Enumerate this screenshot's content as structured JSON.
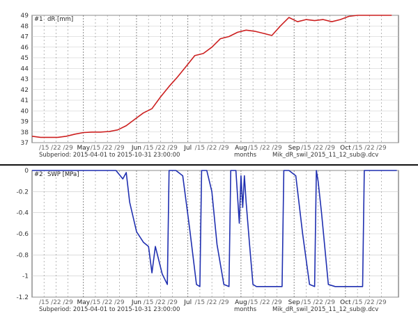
{
  "chart_data": [
    {
      "type": "line",
      "panel_id": "#1",
      "ylabel": "dR [mm]",
      "color": "#cc1f1f",
      "ylim": [
        37,
        49
      ],
      "yticks": [
        37,
        38,
        39,
        40,
        41,
        42,
        43,
        44,
        45,
        46,
        47,
        48,
        49
      ],
      "series": [
        {
          "values": [
            [
              "2015-04-01",
              37.6
            ],
            [
              "2015-04-06",
              37.5
            ],
            [
              "2015-04-11",
              37.5
            ],
            [
              "2015-04-16",
              37.5
            ],
            [
              "2015-04-21",
              37.6
            ],
            [
              "2015-04-26",
              37.8
            ],
            [
              "2015-05-01",
              37.95
            ],
            [
              "2015-05-06",
              38.0
            ],
            [
              "2015-05-11",
              38.0
            ],
            [
              "2015-05-16",
              38.05
            ],
            [
              "2015-05-21",
              38.2
            ],
            [
              "2015-05-26",
              38.6
            ],
            [
              "2015-05-31",
              39.2
            ],
            [
              "2015-06-05",
              39.8
            ],
            [
              "2015-06-10",
              40.2
            ],
            [
              "2015-06-15",
              41.3
            ],
            [
              "2015-06-20",
              42.3
            ],
            [
              "2015-06-25",
              43.2
            ],
            [
              "2015-06-30",
              44.2
            ],
            [
              "2015-07-05",
              45.2
            ],
            [
              "2015-07-10",
              45.4
            ],
            [
              "2015-07-15",
              46.0
            ],
            [
              "2015-07-20",
              46.8
            ],
            [
              "2015-07-25",
              47.0
            ],
            [
              "2015-07-30",
              47.4
            ],
            [
              "2015-08-04",
              47.6
            ],
            [
              "2015-08-09",
              47.5
            ],
            [
              "2015-08-14",
              47.3
            ],
            [
              "2015-08-19",
              47.1
            ],
            [
              "2015-08-24",
              48.0
            ],
            [
              "2015-08-29",
              48.8
            ],
            [
              "2015-09-03",
              48.4
            ],
            [
              "2015-09-08",
              48.6
            ],
            [
              "2015-09-13",
              48.5
            ],
            [
              "2015-09-18",
              48.6
            ],
            [
              "2015-09-23",
              48.4
            ],
            [
              "2015-09-28",
              48.6
            ],
            [
              "2015-10-03",
              48.9
            ],
            [
              "2015-10-08",
              49.0
            ],
            [
              "2015-10-13",
              49.0
            ],
            [
              "2015-10-18",
              49.0
            ],
            [
              "2015-10-23",
              49.0
            ],
            [
              "2015-10-28",
              49.0
            ]
          ]
        }
      ]
    },
    {
      "type": "line",
      "panel_id": "#2",
      "ylabel": "SWP [MPa]",
      "color": "#1f2fb0",
      "ylim": [
        -1.2,
        0
      ],
      "yticks": [
        0,
        -0.2,
        -0.4,
        -0.6,
        -0.8,
        -1,
        -1.2
      ],
      "series": [
        {
          "values": [
            [
              "2015-04-01",
              0
            ],
            [
              "2015-05-20",
              0
            ],
            [
              "2015-05-24",
              -0.08
            ],
            [
              "2015-05-26",
              -0.02
            ],
            [
              "2015-05-28",
              -0.3
            ],
            [
              "2015-06-01",
              -0.58
            ],
            [
              "2015-06-05",
              -0.68
            ],
            [
              "2015-06-08",
              -0.72
            ],
            [
              "2015-06-10",
              -0.97
            ],
            [
              "2015-06-12",
              -0.72
            ],
            [
              "2015-06-16",
              -0.98
            ],
            [
              "2015-06-19",
              -1.08
            ],
            [
              "2015-06-20",
              0
            ],
            [
              "2015-06-24",
              0
            ],
            [
              "2015-06-28",
              -0.05
            ],
            [
              "2015-07-02",
              -0.55
            ],
            [
              "2015-07-06",
              -1.08
            ],
            [
              "2015-07-08",
              -1.1
            ],
            [
              "2015-07-09",
              0
            ],
            [
              "2015-07-12",
              0
            ],
            [
              "2015-07-15",
              -0.2
            ],
            [
              "2015-07-18",
              -0.7
            ],
            [
              "2015-07-22",
              -1.08
            ],
            [
              "2015-07-25",
              -1.1
            ],
            [
              "2015-07-26",
              0
            ],
            [
              "2015-07-29",
              0
            ],
            [
              "2015-07-31",
              -0.5
            ],
            [
              "2015-08-01",
              -0.05
            ],
            [
              "2015-08-02",
              -0.35
            ],
            [
              "2015-08-03",
              -0.05
            ],
            [
              "2015-08-04",
              -0.3
            ],
            [
              "2015-08-06",
              -0.7
            ],
            [
              "2015-08-08",
              -1.08
            ],
            [
              "2015-08-10",
              -1.1
            ],
            [
              "2015-08-25",
              -1.1
            ],
            [
              "2015-08-26",
              0
            ],
            [
              "2015-08-29",
              0
            ],
            [
              "2015-09-02",
              -0.05
            ],
            [
              "2015-09-06",
              -0.6
            ],
            [
              "2015-09-10",
              -1.08
            ],
            [
              "2015-09-13",
              -1.1
            ],
            [
              "2015-09-14",
              0
            ],
            [
              "2015-09-15",
              -0.1
            ],
            [
              "2015-09-17",
              -0.4
            ],
            [
              "2015-09-21",
              -1.08
            ],
            [
              "2015-09-25",
              -1.1
            ],
            [
              "2015-10-11",
              -1.1
            ],
            [
              "2015-10-12",
              0
            ],
            [
              "2015-10-31",
              0
            ]
          ]
        }
      ]
    }
  ],
  "x_axis": {
    "start": "2015-04-01",
    "end": "2015-10-31",
    "major_labels": [
      [
        "2015-05-01",
        "May"
      ],
      [
        "2015-06-01",
        "Jun"
      ],
      [
        "2015-07-01",
        "Jul"
      ],
      [
        "2015-08-01",
        "Aug"
      ],
      [
        "2015-09-01",
        "Sep"
      ],
      [
        "2015-10-01",
        "Oct"
      ]
    ],
    "minor_labels": [
      [
        "2015-04-08",
        "/15"
      ],
      [
        "2015-04-15",
        "/22"
      ],
      [
        "2015-04-22",
        "/29"
      ],
      [
        "2015-05-08",
        "/15"
      ],
      [
        "2015-05-15",
        "/22"
      ],
      [
        "2015-05-22",
        "/29"
      ],
      [
        "2015-06-08",
        "/15"
      ],
      [
        "2015-06-15",
        "/22"
      ],
      [
        "2015-06-22",
        "/29"
      ],
      [
        "2015-07-08",
        "/15"
      ],
      [
        "2015-07-15",
        "/22"
      ],
      [
        "2015-07-22",
        "/29"
      ],
      [
        "2015-08-08",
        "/15"
      ],
      [
        "2015-08-15",
        "/22"
      ],
      [
        "2015-08-22",
        "/29"
      ],
      [
        "2015-09-08",
        "/15"
      ],
      [
        "2015-09-15",
        "/22"
      ],
      [
        "2015-09-22",
        "/29"
      ],
      [
        "2015-10-08",
        "/15"
      ],
      [
        "2015-10-15",
        "/22"
      ],
      [
        "2015-10-22",
        "/29"
      ]
    ]
  },
  "footer": {
    "subperiod": "Subperiod: 2015-04-01 to 2015-10-31 23:00:00",
    "unit": "months",
    "file": "Mik_dR_swil_2015_11_12_sub@.dcv"
  }
}
